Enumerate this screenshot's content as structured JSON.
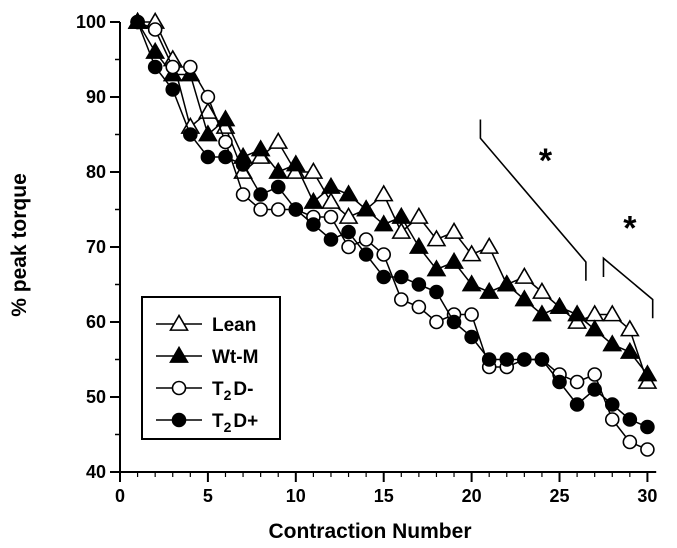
{
  "chart_data": {
    "type": "line",
    "title": "",
    "xlabel": "Contraction Number",
    "ylabel": "% peak torque",
    "xlim": [
      0,
      31
    ],
    "ylim": [
      40,
      100
    ],
    "x_ticks": [
      0,
      5,
      10,
      15,
      20,
      25,
      30
    ],
    "y_ticks": [
      40,
      50,
      60,
      70,
      80,
      90,
      100
    ],
    "grid": false,
    "legend_position": "bottom-left",
    "x": [
      1,
      2,
      3,
      4,
      5,
      6,
      7,
      8,
      9,
      10,
      11,
      12,
      13,
      14,
      15,
      16,
      17,
      18,
      19,
      20,
      21,
      22,
      23,
      24,
      25,
      26,
      27,
      28,
      29,
      30
    ],
    "series": [
      {
        "name": "Lean",
        "marker": "open-triangle",
        "values": [
          100,
          100,
          95,
          86,
          88,
          86,
          80,
          82,
          84,
          80,
          80,
          76,
          74,
          75,
          77,
          72,
          74,
          71,
          72,
          69,
          70,
          65,
          66,
          64,
          62,
          60,
          61,
          61,
          59,
          52
        ]
      },
      {
        "name": "Wt-M",
        "marker": "filled-triangle",
        "values": [
          100,
          96,
          93,
          93,
          85,
          87,
          82,
          83,
          80,
          81,
          76,
          78,
          77,
          75,
          73,
          74,
          70,
          67,
          68,
          65,
          64,
          65,
          63,
          61,
          62,
          61,
          59,
          57,
          56,
          53
        ]
      },
      {
        "name": "T2D-",
        "name_parts": [
          "T",
          "2",
          "D-"
        ],
        "marker": "open-circle",
        "values": [
          100,
          99,
          94,
          94,
          90,
          84,
          77,
          75,
          75,
          75,
          74,
          74,
          70,
          71,
          69,
          63,
          62,
          60,
          61,
          61,
          54,
          54,
          55,
          55,
          53,
          52,
          53,
          47,
          44,
          43
        ]
      },
      {
        "name": "T2D+",
        "name_parts": [
          "T",
          "2",
          "D+"
        ],
        "marker": "filled-circle",
        "values": [
          100,
          94,
          91,
          85,
          82,
          82,
          81,
          77,
          78,
          75,
          73,
          71,
          72,
          69,
          66,
          66,
          65,
          64,
          60,
          58,
          55,
          55,
          55,
          55,
          52,
          49,
          51,
          49,
          47,
          46
        ]
      }
    ],
    "annotations": [
      {
        "text": "*",
        "bracket_x": [
          20.5,
          26.5
        ]
      },
      {
        "text": "*",
        "bracket_x": [
          27.5,
          30.3
        ]
      }
    ]
  }
}
